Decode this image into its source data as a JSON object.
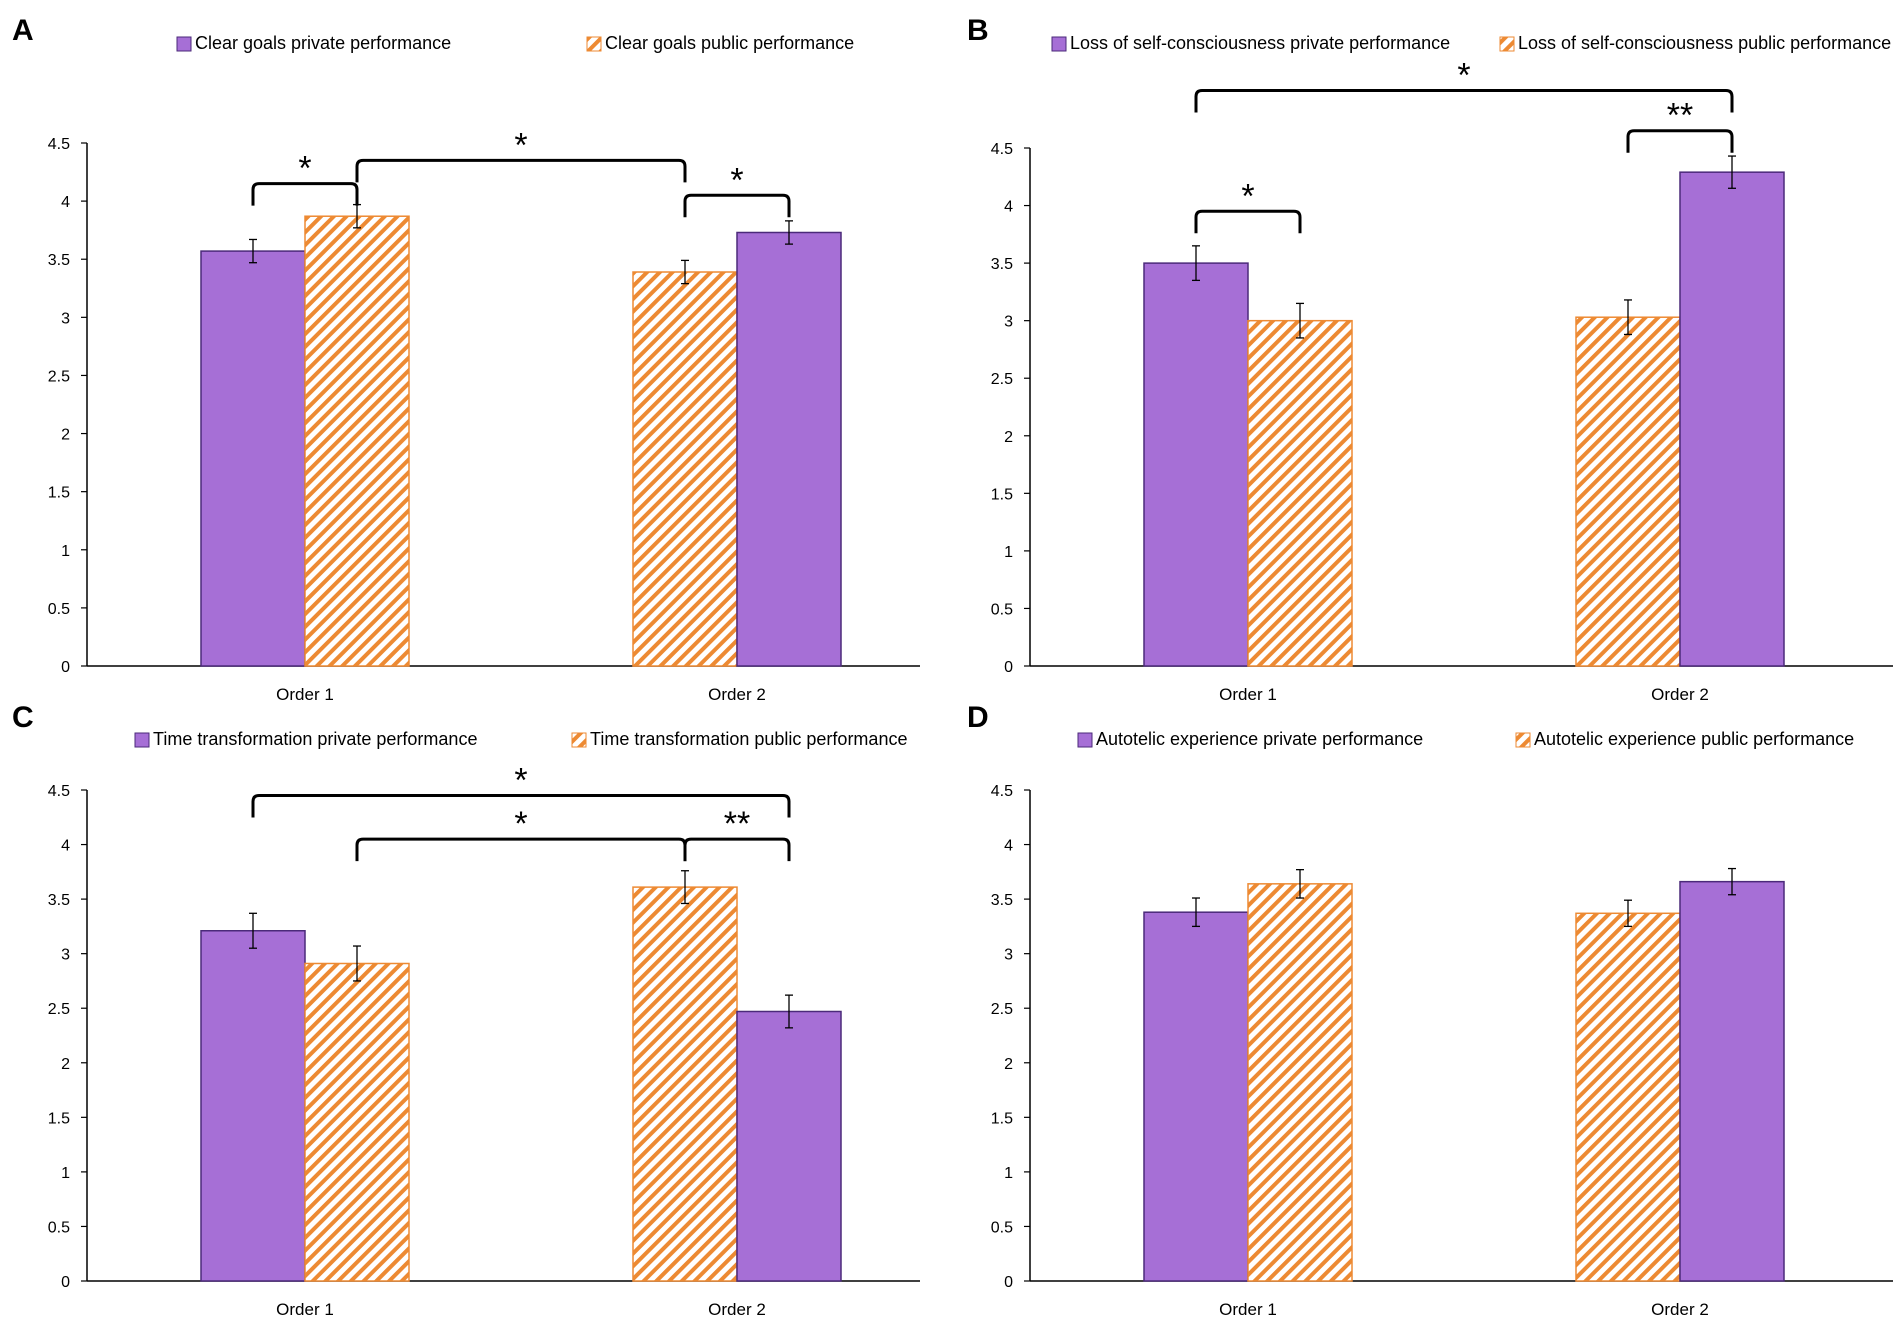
{
  "colors": {
    "private_fill": "#a66fd6",
    "private_stroke": "#4b2a7a",
    "public_stripe": "#ed8a33",
    "public_bg": "#ffffff",
    "axis": "#000000",
    "error_bar": "#000000"
  },
  "chart_data": [
    {
      "panel": "A",
      "type": "bar",
      "legend": [
        "Clear goals private performance",
        "Clear goals public performance"
      ],
      "categories": [
        "Order 1",
        "Order 2"
      ],
      "ylim": [
        0,
        4.5
      ],
      "yticks": [
        "0",
        "0.5",
        "1",
        "1.5",
        "2",
        "2.5",
        "3",
        "3.5",
        "4",
        "4.5"
      ],
      "bars": [
        {
          "group": 0,
          "slot": 0,
          "series": "private",
          "value": 3.57,
          "err": 0.1
        },
        {
          "group": 0,
          "slot": 1,
          "series": "public",
          "value": 3.87,
          "err": 0.1
        },
        {
          "group": 1,
          "slot": 0,
          "series": "public",
          "value": 3.39,
          "err": 0.1
        },
        {
          "group": 1,
          "slot": 1,
          "series": "private",
          "value": 3.73,
          "err": 0.1
        }
      ],
      "sig": [
        {
          "from": [
            0,
            0
          ],
          "to": [
            0,
            1
          ],
          "level": 4.15,
          "label": "*"
        },
        {
          "from": [
            0,
            1
          ],
          "to": [
            1,
            0
          ],
          "level": 4.35,
          "label": "*"
        },
        {
          "from": [
            1,
            0
          ],
          "to": [
            1,
            1
          ],
          "level": 4.05,
          "label": "*"
        }
      ]
    },
    {
      "panel": "B",
      "type": "bar",
      "legend": [
        "Loss of self-consciousness private performance",
        "Loss of self-consciousness public performance"
      ],
      "categories": [
        "Order 1",
        "Order 2"
      ],
      "ylim": [
        0,
        4.5
      ],
      "yticks": [
        "0",
        "0.5",
        "1",
        "1.5",
        "2",
        "2.5",
        "3",
        "3.5",
        "4",
        "4.5"
      ],
      "bars": [
        {
          "group": 0,
          "slot": 0,
          "series": "private",
          "value": 3.5,
          "err": 0.15
        },
        {
          "group": 0,
          "slot": 1,
          "series": "public",
          "value": 3.0,
          "err": 0.15
        },
        {
          "group": 1,
          "slot": 0,
          "series": "public",
          "value": 3.03,
          "err": 0.15
        },
        {
          "group": 1,
          "slot": 1,
          "series": "private",
          "value": 4.29,
          "err": 0.14
        }
      ],
      "sig": [
        {
          "from": [
            0,
            0
          ],
          "to": [
            0,
            1
          ],
          "level": 3.95,
          "label": "*"
        },
        {
          "from": [
            1,
            0
          ],
          "to": [
            1,
            1
          ],
          "level": 4.65,
          "label": "**"
        },
        {
          "from": [
            0,
            0
          ],
          "to": [
            1,
            1
          ],
          "level": 5.0,
          "label": "*"
        }
      ]
    },
    {
      "panel": "C",
      "type": "bar",
      "legend": [
        "Time transformation private performance",
        "Time transformation public performance"
      ],
      "categories": [
        "Order 1",
        "Order 2"
      ],
      "ylim": [
        0,
        4.5
      ],
      "yticks": [
        "0",
        "0.5",
        "1",
        "1.5",
        "2",
        "2.5",
        "3",
        "3.5",
        "4",
        "4.5"
      ],
      "bars": [
        {
          "group": 0,
          "slot": 0,
          "series": "private",
          "value": 3.21,
          "err": 0.16
        },
        {
          "group": 0,
          "slot": 1,
          "series": "public",
          "value": 2.91,
          "err": 0.16
        },
        {
          "group": 1,
          "slot": 0,
          "series": "public",
          "value": 3.61,
          "err": 0.15
        },
        {
          "group": 1,
          "slot": 1,
          "series": "private",
          "value": 2.47,
          "err": 0.15
        }
      ],
      "sig": [
        {
          "from": [
            0,
            0
          ],
          "to": [
            1,
            1
          ],
          "level": 4.45,
          "label": "*"
        },
        {
          "from": [
            0,
            1
          ],
          "to": [
            1,
            0
          ],
          "level": 4.05,
          "label": "*"
        },
        {
          "from": [
            1,
            0
          ],
          "to": [
            1,
            1
          ],
          "level": 4.05,
          "label": "**"
        }
      ]
    },
    {
      "panel": "D",
      "type": "bar",
      "legend": [
        "Autotelic experience private performance",
        "Autotelic experience public performance"
      ],
      "categories": [
        "Order 1",
        "Order 2"
      ],
      "ylim": [
        0,
        4.5
      ],
      "yticks": [
        "0",
        "0.5",
        "1",
        "1.5",
        "2",
        "2.5",
        "3",
        "3.5",
        "4",
        "4.5"
      ],
      "bars": [
        {
          "group": 0,
          "slot": 0,
          "series": "private",
          "value": 3.38,
          "err": 0.13
        },
        {
          "group": 0,
          "slot": 1,
          "series": "public",
          "value": 3.64,
          "err": 0.13
        },
        {
          "group": 1,
          "slot": 0,
          "series": "public",
          "value": 3.37,
          "err": 0.12
        },
        {
          "group": 1,
          "slot": 1,
          "series": "private",
          "value": 3.66,
          "err": 0.12
        }
      ],
      "sig": []
    }
  ]
}
